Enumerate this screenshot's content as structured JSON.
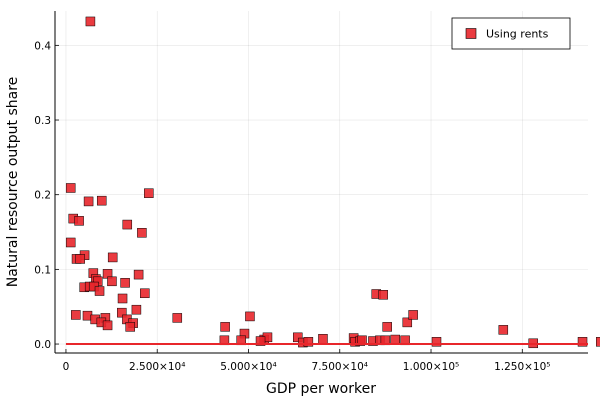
{
  "chart_data": {
    "type": "scatter",
    "xlabel": "GDP per worker",
    "ylabel": "Natural resource output share",
    "xlim": [
      -3000,
      143000
    ],
    "ylim": [
      -0.012,
      0.446
    ],
    "xticks": [
      {
        "value": 0,
        "label": "0"
      },
      {
        "value": 25000,
        "label": "2.500×10⁴"
      },
      {
        "value": 50000,
        "label": "5.000×10⁴"
      },
      {
        "value": 75000,
        "label": "7.500×10⁴"
      },
      {
        "value": 100000,
        "label": "1.000×10⁵"
      },
      {
        "value": 125000,
        "label": "1.250×10⁵"
      }
    ],
    "yticks": [
      {
        "value": 0.0,
        "label": "0.0"
      },
      {
        "value": 0.1,
        "label": "0.1"
      },
      {
        "value": 0.2,
        "label": "0.2"
      },
      {
        "value": 0.3,
        "label": "0.3"
      },
      {
        "value": 0.4,
        "label": "0.4"
      }
    ],
    "grid": true,
    "legend_position": "top-right",
    "series": [
      {
        "name": "Using rents",
        "color": "#e8262b",
        "marker": "square",
        "points": [
          [
            6700,
            0.432
          ],
          [
            1300,
            0.209
          ],
          [
            6200,
            0.191
          ],
          [
            9800,
            0.192
          ],
          [
            22700,
            0.202
          ],
          [
            2000,
            0.168
          ],
          [
            3600,
            0.165
          ],
          [
            1300,
            0.136
          ],
          [
            16800,
            0.16
          ],
          [
            20800,
            0.149
          ],
          [
            5100,
            0.119
          ],
          [
            12800,
            0.116
          ],
          [
            2900,
            0.114
          ],
          [
            3900,
            0.114
          ],
          [
            7500,
            0.095
          ],
          [
            11400,
            0.094
          ],
          [
            19900,
            0.093
          ],
          [
            8200,
            0.087
          ],
          [
            8700,
            0.084
          ],
          [
            12600,
            0.084
          ],
          [
            16200,
            0.082
          ],
          [
            5000,
            0.076
          ],
          [
            6500,
            0.077
          ],
          [
            7700,
            0.077
          ],
          [
            9200,
            0.071
          ],
          [
            21600,
            0.068
          ],
          [
            15500,
            0.061
          ],
          [
            19300,
            0.046
          ],
          [
            15300,
            0.042
          ],
          [
            2700,
            0.039
          ],
          [
            5900,
            0.038
          ],
          [
            8000,
            0.033
          ],
          [
            10800,
            0.035
          ],
          [
            16700,
            0.033
          ],
          [
            9700,
            0.029
          ],
          [
            11400,
            0.025
          ],
          [
            18400,
            0.028
          ],
          [
            17600,
            0.023
          ],
          [
            30500,
            0.035
          ],
          [
            50400,
            0.037
          ],
          [
            43600,
            0.023
          ],
          [
            48900,
            0.014
          ],
          [
            43400,
            0.005
          ],
          [
            48000,
            0.005
          ],
          [
            54300,
            0.006
          ],
          [
            55200,
            0.009
          ],
          [
            53300,
            0.004
          ],
          [
            63500,
            0.009
          ],
          [
            64900,
            0.002
          ],
          [
            66400,
            0.003
          ],
          [
            70400,
            0.007
          ],
          [
            78800,
            0.008
          ],
          [
            79200,
            0.003
          ],
          [
            80600,
            0.004
          ],
          [
            81100,
            0.005
          ],
          [
            84100,
            0.004
          ],
          [
            86000,
            0.005
          ],
          [
            87500,
            0.005
          ],
          [
            90200,
            0.006
          ],
          [
            92900,
            0.005
          ],
          [
            85000,
            0.067
          ],
          [
            86900,
            0.066
          ],
          [
            88000,
            0.023
          ],
          [
            93500,
            0.029
          ],
          [
            95100,
            0.039
          ],
          [
            101500,
            0.003
          ],
          [
            119800,
            0.019
          ],
          [
            128000,
            0.001
          ],
          [
            141500,
            0.003
          ],
          [
            146500,
            0.003
          ]
        ],
        "fitted_line": [
          [
            0,
            0.0
          ],
          [
            146500,
            0.0
          ]
        ]
      }
    ]
  }
}
